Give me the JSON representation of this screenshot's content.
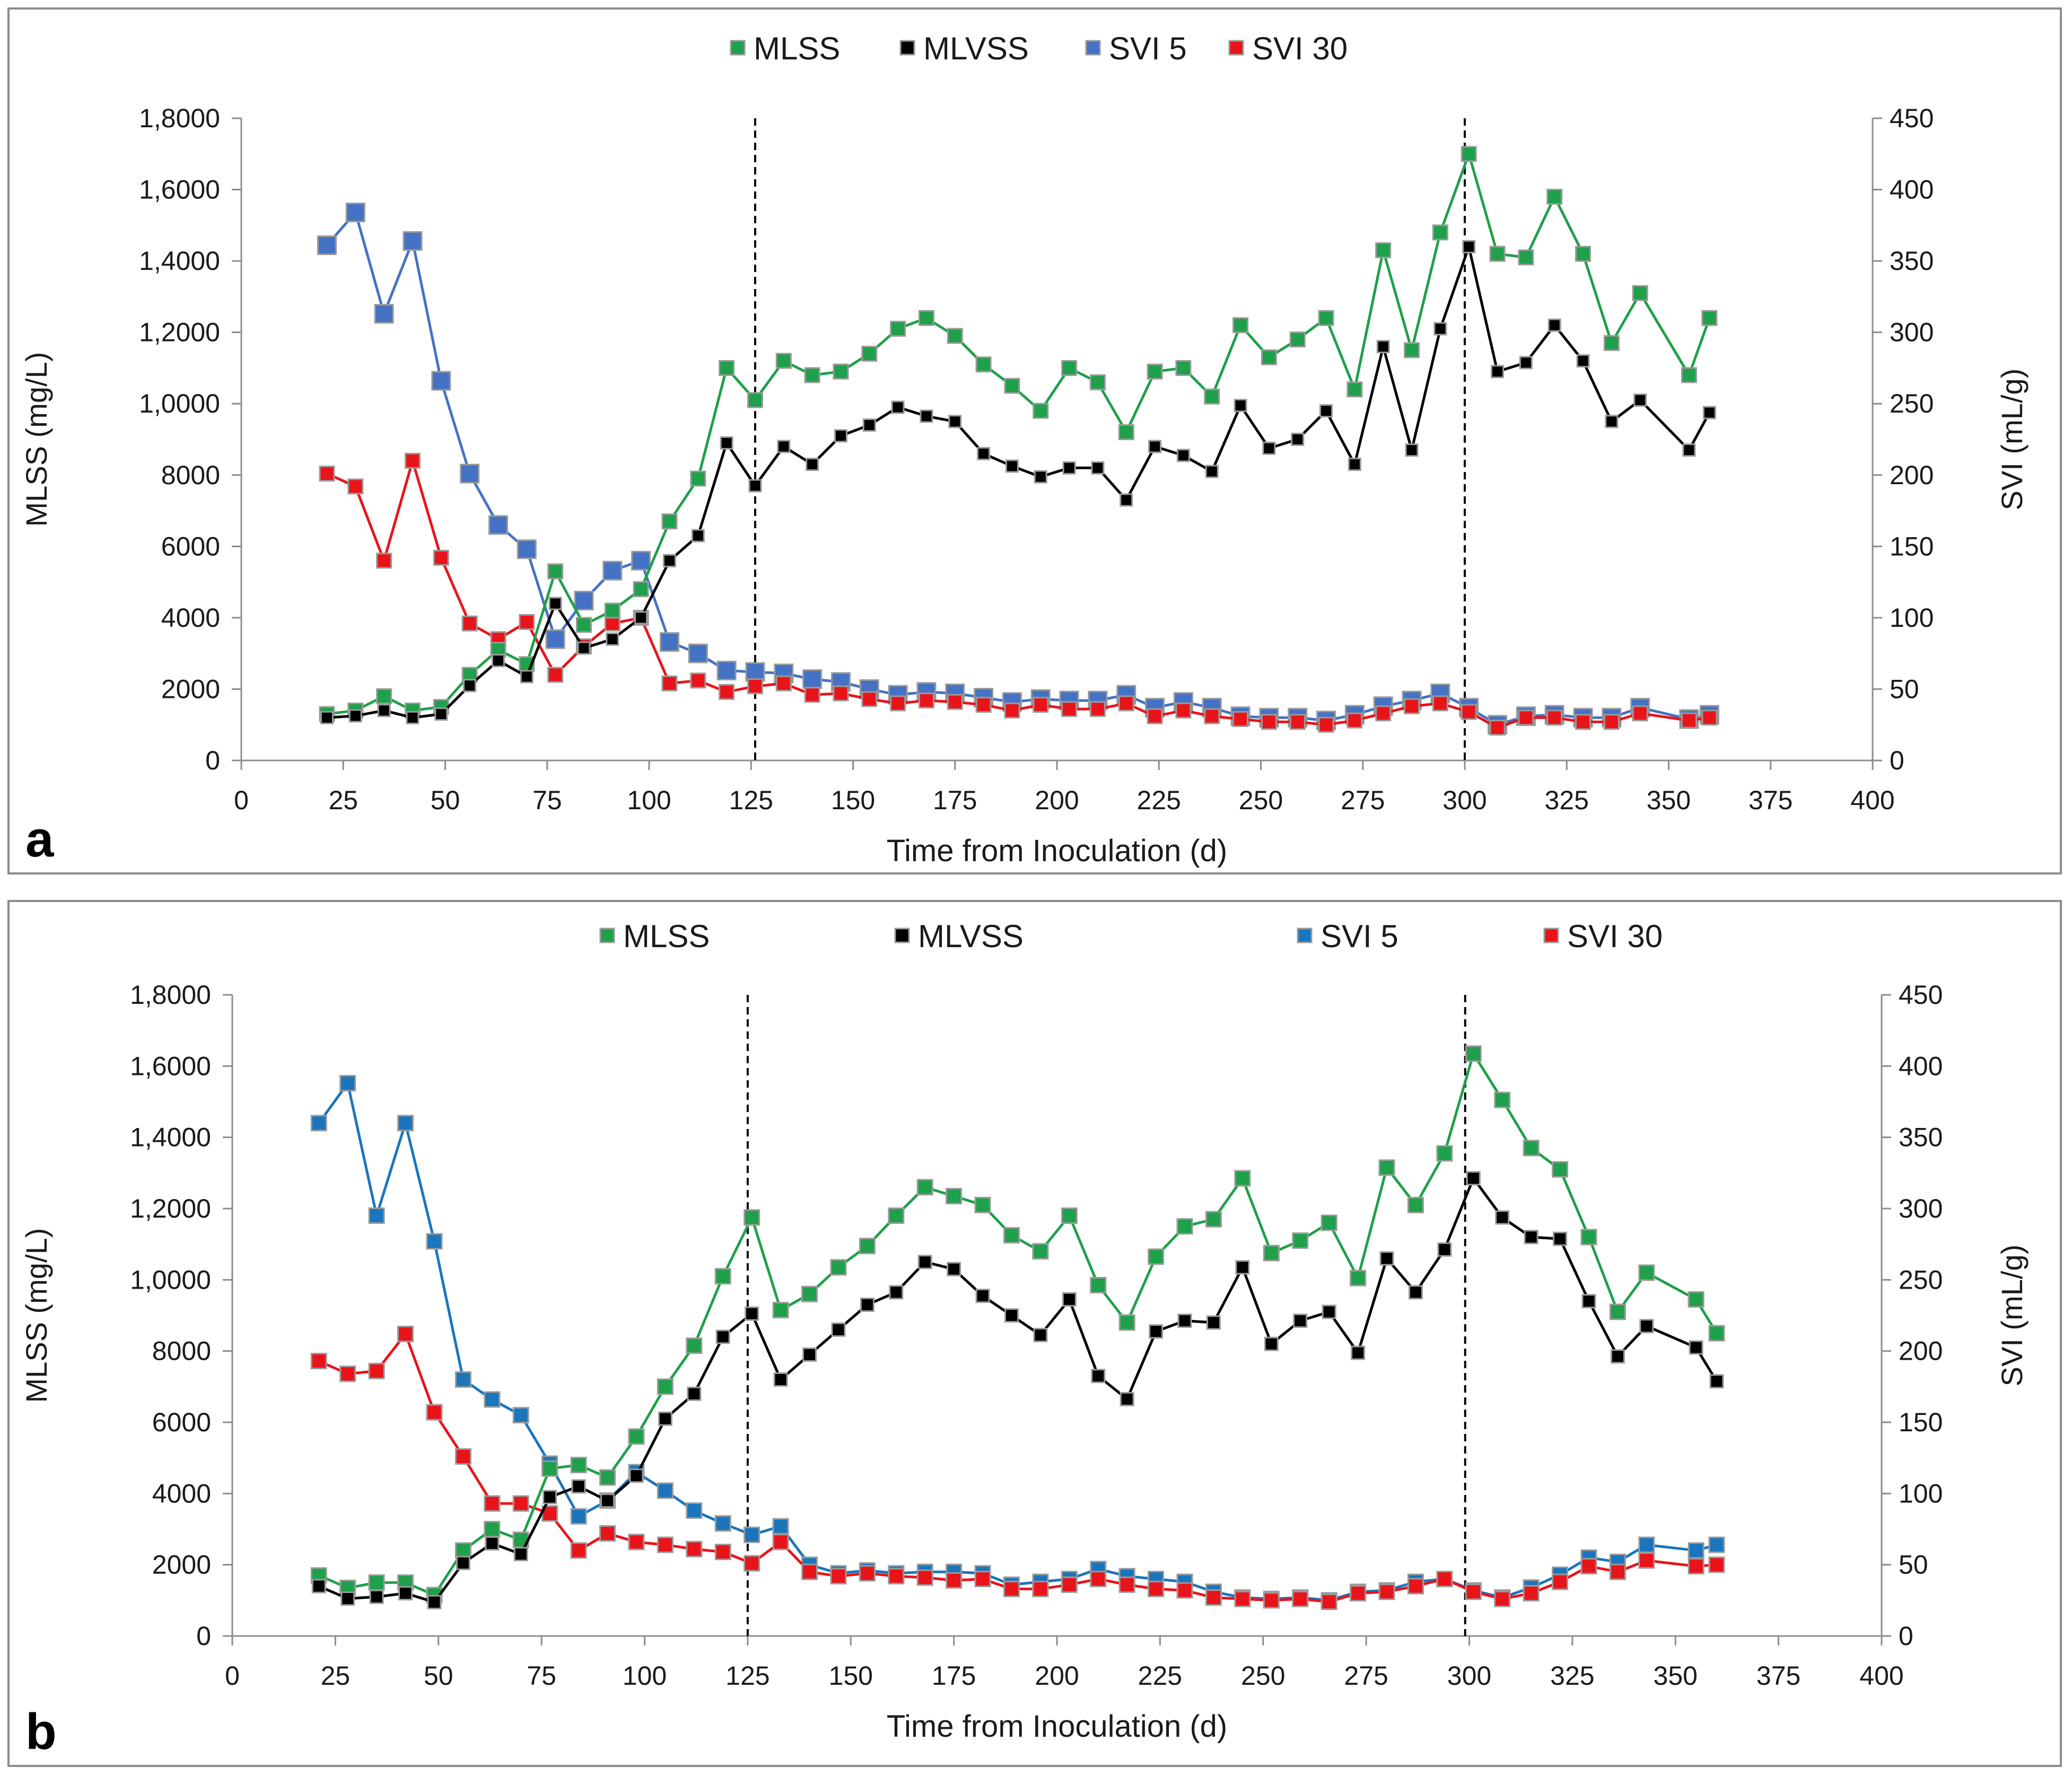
{
  "colors": {
    "MLSS": "#1fa04a",
    "MLVSS": "#000000",
    "SVI5_a": "#4472c4",
    "SVI5_b": "#1a75bc",
    "SVI30": "#e8141a",
    "marker_border": "#9a9a9a"
  },
  "chart_data": [
    {
      "panel": "a",
      "type": "line",
      "xlabel": "Time from Inoculation (d)",
      "ylabel": "MLSS (mg/L)",
      "y2label": "SVI (mL/g)",
      "xlim": [
        0,
        400
      ],
      "ylim": [
        0,
        18000
      ],
      "y2lim": [
        0,
        450
      ],
      "x_ticks": [
        "0",
        "25",
        "50",
        "75",
        "100",
        "125",
        "150",
        "175",
        "200",
        "225",
        "250",
        "275",
        "300",
        "325",
        "350",
        "375",
        "400"
      ],
      "y_ticks": [
        "0",
        "2000",
        "4000",
        "6000",
        "8000",
        "1,0000",
        "1,2000",
        "1,4000",
        "1,6000",
        "1,8000"
      ],
      "y2_ticks": [
        "0",
        "50",
        "100",
        "150",
        "200",
        "250",
        "300",
        "350",
        "400",
        "450"
      ],
      "vlines": [
        126,
        300
      ],
      "legend_position": "top-center",
      "series": [
        {
          "name": "MLSS",
          "axis": "left",
          "x": [
            21,
            28,
            35,
            42,
            49,
            56,
            63,
            70,
            77,
            84,
            91,
            98,
            105,
            112,
            119,
            126,
            133,
            140,
            147,
            154,
            161,
            168,
            175,
            182,
            189,
            196,
            203,
            210,
            217,
            224,
            231,
            238,
            245,
            252,
            259,
            266,
            273,
            280,
            287,
            294,
            301,
            308,
            315,
            322,
            329,
            336,
            343,
            355,
            360
          ],
          "y": [
            1300,
            1400,
            1800,
            1400,
            1500,
            2400,
            3100,
            2700,
            5300,
            3800,
            4200,
            4800,
            6700,
            7900,
            11000,
            10100,
            11200,
            10800,
            10900,
            11400,
            12100,
            12400,
            11900,
            11100,
            10500,
            9800,
            11000,
            10600,
            9200,
            10900,
            11000,
            10200,
            12200,
            11300,
            11800,
            12400,
            10400,
            14300,
            11500,
            14800,
            17000,
            14200,
            14100,
            15800,
            14200,
            11700,
            13100,
            10800,
            12400
          ]
        },
        {
          "name": "MLVSS",
          "axis": "left",
          "x": [
            21,
            28,
            35,
            42,
            49,
            56,
            63,
            70,
            77,
            84,
            91,
            98,
            105,
            112,
            119,
            126,
            133,
            140,
            147,
            154,
            161,
            168,
            175,
            182,
            189,
            196,
            203,
            210,
            217,
            224,
            231,
            238,
            245,
            252,
            259,
            266,
            273,
            280,
            287,
            294,
            301,
            308,
            315,
            322,
            329,
            336,
            343,
            355,
            360
          ],
          "y": [
            1200,
            1250,
            1400,
            1200,
            1300,
            2100,
            2800,
            2350,
            4400,
            3150,
            3400,
            4000,
            5600,
            6300,
            8900,
            7700,
            8800,
            8300,
            9100,
            9400,
            9900,
            9650,
            9500,
            8600,
            8250,
            7950,
            8200,
            8200,
            7300,
            8800,
            8550,
            8100,
            9950,
            8750,
            9000,
            9800,
            8300,
            11600,
            8700,
            12100,
            14400,
            10900,
            11150,
            12200,
            11200,
            9500,
            10100,
            8700,
            9750
          ]
        },
        {
          "name": "SVI 5",
          "axis": "right",
          "x": [
            21,
            28,
            35,
            42,
            49,
            56,
            63,
            70,
            77,
            84,
            91,
            98,
            105,
            112,
            119,
            126,
            133,
            140,
            147,
            154,
            161,
            168,
            175,
            182,
            189,
            196,
            203,
            210,
            217,
            224,
            231,
            238,
            245,
            252,
            259,
            266,
            273,
            280,
            287,
            294,
            301,
            308,
            315,
            322,
            329,
            336,
            343,
            355,
            360
          ],
          "y": [
            361,
            384,
            313,
            364,
            266,
            201,
            165,
            148,
            85,
            112,
            133,
            140,
            83,
            75,
            63,
            62,
            61,
            57,
            55,
            50,
            46,
            48,
            47,
            44,
            41,
            43,
            42,
            42,
            46,
            37,
            41,
            37,
            31,
            30,
            30,
            28,
            32,
            38,
            42,
            47,
            37,
            25,
            31,
            32,
            30,
            30,
            37,
            29,
            32
          ]
        },
        {
          "name": "SVI 30",
          "axis": "right",
          "x": [
            21,
            28,
            35,
            42,
            49,
            56,
            63,
            70,
            77,
            84,
            91,
            98,
            105,
            112,
            119,
            126,
            133,
            140,
            147,
            154,
            161,
            168,
            175,
            182,
            189,
            196,
            203,
            210,
            217,
            224,
            231,
            238,
            245,
            252,
            259,
            266,
            273,
            280,
            287,
            294,
            301,
            308,
            315,
            322,
            329,
            336,
            343,
            355,
            360
          ],
          "y": [
            201,
            192,
            140,
            210,
            142,
            96,
            85,
            97,
            60,
            80,
            96,
            100,
            54,
            56,
            48,
            52,
            54,
            46,
            47,
            43,
            40,
            42,
            41,
            39,
            35,
            39,
            36,
            36,
            40,
            31,
            35,
            31,
            29,
            27,
            27,
            25,
            28,
            33,
            38,
            40,
            34,
            23,
            30,
            30,
            27,
            27,
            33,
            28,
            30
          ]
        }
      ]
    },
    {
      "panel": "b",
      "type": "line",
      "xlabel": "Time from Inoculation (d)",
      "ylabel": "MLSS (mg/L)",
      "y2label": "SVI (mL/g)",
      "xlim": [
        0,
        400
      ],
      "ylim": [
        0,
        18000
      ],
      "y2lim": [
        0,
        450
      ],
      "x_ticks": [
        "0",
        "25",
        "50",
        "75",
        "100",
        "125",
        "150",
        "175",
        "200",
        "225",
        "250",
        "275",
        "300",
        "325",
        "350",
        "375",
        "400"
      ],
      "y_ticks": [
        "0",
        "2000",
        "4000",
        "6000",
        "8000",
        "1,0000",
        "1,2000",
        "1,4000",
        "1,6000",
        "1,8000"
      ],
      "y2_ticks": [
        "0",
        "50",
        "100",
        "150",
        "200",
        "250",
        "300",
        "350",
        "400",
        "450"
      ],
      "vlines": [
        125,
        299
      ],
      "legend_position": "top-center",
      "series": [
        {
          "name": "MLSS",
          "axis": "left",
          "x": [
            21,
            28,
            35,
            42,
            49,
            56,
            63,
            70,
            77,
            84,
            91,
            98,
            105,
            112,
            119,
            126,
            133,
            140,
            147,
            154,
            161,
            168,
            175,
            182,
            189,
            196,
            203,
            210,
            217,
            224,
            231,
            238,
            245,
            252,
            259,
            266,
            273,
            280,
            287,
            294,
            301,
            308,
            315,
            322,
            329,
            336,
            343,
            355,
            360
          ],
          "y": [
            1700,
            1350,
            1500,
            1500,
            1150,
            2400,
            3000,
            2700,
            4700,
            4800,
            4450,
            5600,
            7000,
            8150,
            10100,
            11750,
            9150,
            9600,
            10350,
            10950,
            11800,
            12600,
            12350,
            12100,
            11250,
            10800,
            11800,
            9850,
            8800,
            10650,
            11500,
            11700,
            12850,
            10750,
            11100,
            11600,
            10050,
            13150,
            12100,
            13550,
            16350,
            15050,
            13700,
            13100,
            11200,
            9100,
            10200,
            9450,
            8500
          ]
        },
        {
          "name": "MLVSS",
          "axis": "left",
          "x": [
            21,
            28,
            35,
            42,
            49,
            56,
            63,
            70,
            77,
            84,
            91,
            98,
            105,
            112,
            119,
            126,
            133,
            140,
            147,
            154,
            161,
            168,
            175,
            182,
            189,
            196,
            203,
            210,
            217,
            224,
            231,
            238,
            245,
            252,
            259,
            266,
            273,
            280,
            287,
            294,
            301,
            308,
            315,
            322,
            329,
            336,
            343,
            355,
            360
          ],
          "y": [
            1400,
            1050,
            1100,
            1200,
            950,
            2050,
            2600,
            2300,
            3900,
            4200,
            3800,
            4500,
            6100,
            6800,
            8400,
            9050,
            7200,
            7900,
            8600,
            9300,
            9650,
            10500,
            10300,
            9550,
            9000,
            8450,
            9450,
            7300,
            6650,
            8550,
            8850,
            8800,
            10350,
            8200,
            8850,
            9100,
            7950,
            10600,
            9650,
            10850,
            12850,
            11750,
            11200,
            11150,
            9400,
            7850,
            8700,
            8100,
            7150
          ]
        },
        {
          "name": "SVI 5",
          "axis": "right",
          "x": [
            21,
            28,
            35,
            42,
            49,
            56,
            63,
            70,
            77,
            84,
            91,
            98,
            105,
            112,
            119,
            126,
            133,
            140,
            147,
            154,
            161,
            168,
            175,
            182,
            189,
            196,
            203,
            210,
            217,
            224,
            231,
            238,
            245,
            252,
            259,
            266,
            273,
            280,
            287,
            294,
            301,
            308,
            315,
            322,
            329,
            336,
            343,
            355,
            360
          ],
          "y": [
            360,
            388,
            295,
            360,
            277,
            180,
            166,
            155,
            121,
            84,
            95,
            115,
            102,
            88,
            79,
            71,
            77,
            50,
            44,
            46,
            44,
            45,
            45,
            44,
            36,
            38,
            40,
            47,
            42,
            40,
            38,
            31,
            27,
            26,
            27,
            25,
            31,
            32,
            38,
            40,
            32,
            27,
            34,
            43,
            55,
            52,
            64,
            60,
            64
          ]
        },
        {
          "name": "SVI 30",
          "axis": "right",
          "x": [
            21,
            28,
            35,
            42,
            49,
            56,
            63,
            70,
            77,
            84,
            91,
            98,
            105,
            112,
            119,
            126,
            133,
            140,
            147,
            154,
            161,
            168,
            175,
            182,
            189,
            196,
            203,
            210,
            217,
            224,
            231,
            238,
            245,
            252,
            259,
            266,
            273,
            280,
            287,
            294,
            301,
            308,
            315,
            322,
            329,
            336,
            343,
            355,
            360
          ],
          "y": [
            193,
            184,
            186,
            212,
            157,
            126,
            93,
            93,
            86,
            60,
            72,
            66,
            64,
            61,
            59,
            51,
            66,
            45,
            42,
            44,
            42,
            41,
            39,
            40,
            33,
            33,
            36,
            40,
            36,
            33,
            32,
            27,
            26,
            25,
            26,
            24,
            30,
            31,
            35,
            40,
            31,
            26,
            30,
            38,
            49,
            45,
            53,
            49,
            50
          ]
        }
      ]
    }
  ]
}
